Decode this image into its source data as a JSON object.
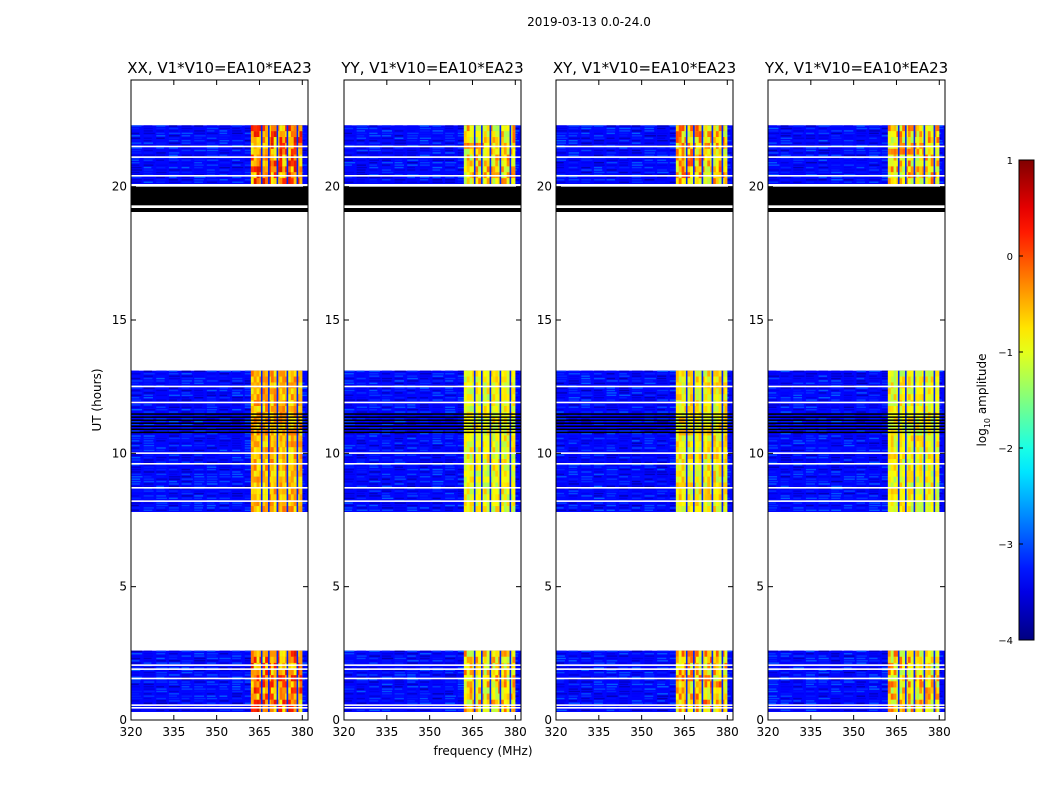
{
  "chart_data": {
    "type": "heatmap",
    "title": "2019-03-13 0.0-24.0",
    "xlabel": "frequency (MHz)",
    "ylabel": "UT (hours)",
    "xlim": [
      320,
      382
    ],
    "ylim": [
      0,
      24
    ],
    "x_ticks": [
      320,
      335,
      350,
      365,
      380
    ],
    "y_ticks": [
      0,
      5,
      10,
      15,
      20
    ],
    "colorbar": {
      "label_main": "log",
      "label_sub": "10",
      "label_end": " amplitude",
      "range": [
        -4,
        1
      ],
      "ticks": [
        1,
        0,
        -1,
        -2,
        -3,
        -4
      ],
      "tick_labels": [
        "1",
        "0",
        "−1",
        "−2",
        "−3",
        "−4"
      ],
      "colormap": "jet"
    },
    "panels": [
      {
        "title": "XX, V1*V10=EA10*EA23",
        "band_level": -0.4,
        "hot_level": 0.2
      },
      {
        "title": "YY, V1*V10=EA10*EA23",
        "band_level": -0.8,
        "hot_level": -0.4
      },
      {
        "title": "XY, V1*V10=EA10*EA23",
        "band_level": -0.7,
        "hot_level": -0.2
      },
      {
        "title": "YX, V1*V10=EA10*EA23",
        "band_level": -0.8,
        "hot_level": -0.3
      }
    ],
    "observed_blocks_ut": [
      [
        0.3,
        2.6
      ],
      [
        7.8,
        13.1
      ],
      [
        20.1,
        22.3
      ]
    ],
    "flagged_black_ut": [
      [
        19.3,
        20.0
      ],
      [
        19.05,
        19.2
      ],
      [
        10.7,
        11.5
      ]
    ],
    "gaps_white_ut": [
      0.45,
      0.55,
      1.55,
      1.9,
      2.05,
      8.2,
      8.7,
      9.6,
      10.0,
      11.9,
      12.5,
      21.1,
      21.5,
      20.4
    ],
    "rfi_band_mhz": [
      362,
      380
    ],
    "band_dark_lines_mhz": [
      365.5,
      368,
      371,
      374.5,
      378
    ]
  }
}
